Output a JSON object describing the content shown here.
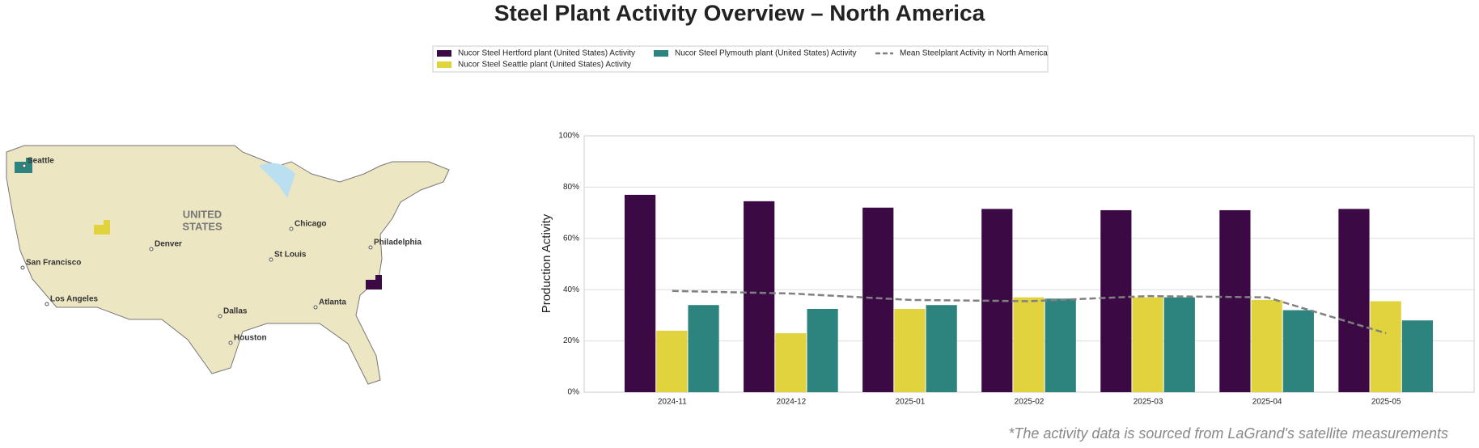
{
  "chart_data": {
    "type": "bar",
    "title": "Steel Plant Activity Overview – North America",
    "y_label": "Production Activity",
    "categories": [
      "2024-11",
      "2024-12",
      "2025-01",
      "2025-02",
      "2025-03",
      "2025-04",
      "2025-05"
    ],
    "series": [
      {
        "name": "Nucor Steel Hertford plant (United States) Activity",
        "color": "#3b0a45",
        "values": [
          77,
          74.5,
          72,
          71.5,
          71,
          71,
          71.5
        ]
      },
      {
        "name": "Nucor Steel Seattle plant (United States) Activity",
        "color": "#e1d33d",
        "values": [
          24,
          23,
          32.5,
          37,
          37,
          36,
          35.5
        ]
      },
      {
        "name": "Nucor Steel Plymouth plant (United States) Activity",
        "color": "#2d837d",
        "values": [
          34,
          32.5,
          34,
          36.5,
          37,
          32,
          28
        ]
      },
      {
        "name": "Mean Steelplant Activity in North America",
        "color": "#808080",
        "type": "line",
        "dashed": true,
        "values": [
          39.5,
          38.5,
          36,
          35.5,
          37.5,
          37,
          23
        ]
      }
    ],
    "ylim": [
      0,
      100
    ],
    "yticks": [
      {
        "value": 0,
        "label": "0%"
      },
      {
        "value": 20,
        "label": "20%"
      },
      {
        "value": 40,
        "label": "40%"
      },
      {
        "value": 60,
        "label": "60%"
      },
      {
        "value": 80,
        "label": "80%"
      },
      {
        "value": 100,
        "label": "100%"
      }
    ],
    "grid": true,
    "legend": "upper center",
    "footnote": "*The activity data is sourced from LaGrand's satellite measurements"
  },
  "map": {
    "country_label": [
      "UNITED",
      "STATES"
    ],
    "cities": [
      "Seattle",
      "San Francisco",
      "Los Angeles",
      "Denver",
      "Chicago",
      "St Louis",
      "Dallas",
      "Houston",
      "Atlanta",
      "Philadelphia"
    ]
  }
}
